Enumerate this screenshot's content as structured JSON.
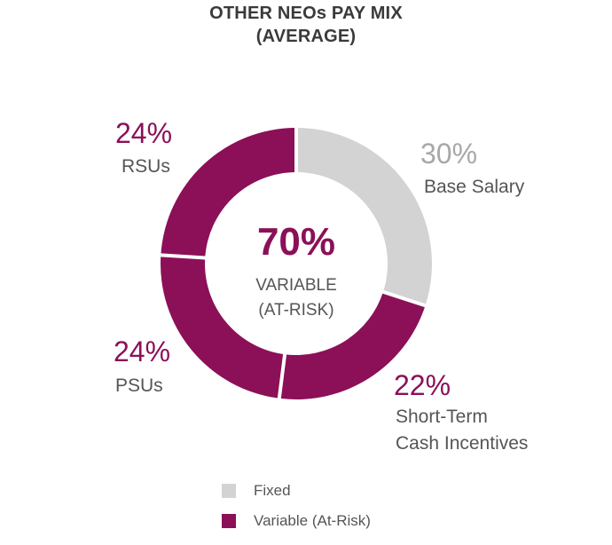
{
  "chart_data": {
    "type": "pie",
    "title": [
      "OTHER NEOs PAY MIX",
      "(AVERAGE)"
    ],
    "slices": [
      {
        "name": "Base Salary",
        "lines": [
          "Base Salary"
        ],
        "value": 30,
        "pct_label": "30%",
        "group": "fixed"
      },
      {
        "name": "Short-Term Cash Incentives",
        "lines": [
          "Short-Term",
          "Cash Incentives"
        ],
        "value": 22,
        "pct_label": "22%",
        "group": "variable"
      },
      {
        "name": "PSUs",
        "lines": [
          "PSUs"
        ],
        "value": 24,
        "pct_label": "24%",
        "group": "variable"
      },
      {
        "name": "RSUs",
        "lines": [
          "RSUs"
        ],
        "value": 24,
        "pct_label": "24%",
        "group": "variable"
      }
    ],
    "center": {
      "value": "70%",
      "lines": [
        "VARIABLE",
        "(AT-RISK)"
      ]
    },
    "legend": [
      {
        "label": "Fixed",
        "group": "fixed"
      },
      {
        "label": "Variable (At-Risk)",
        "group": "variable"
      }
    ]
  },
  "colors": {
    "fixed": "#d3d3d3",
    "variable": "#8b1058",
    "fixed_text": "#a8a8a8",
    "variable_text": "#8b1058"
  }
}
